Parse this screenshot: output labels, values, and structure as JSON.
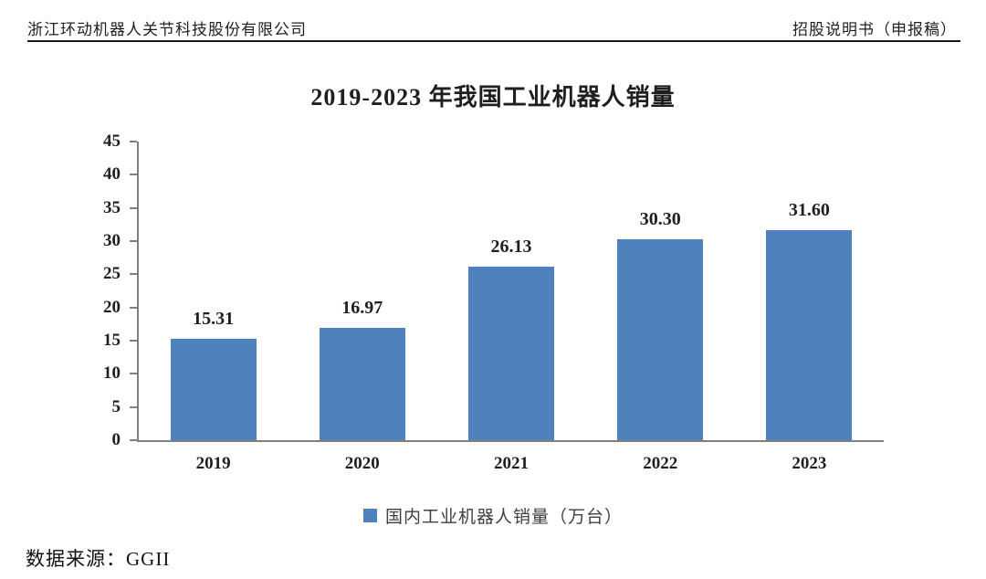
{
  "header": {
    "left": "浙江环动机器人关节科技股份有限公司",
    "right": "招股说明书（申报稿）"
  },
  "chart_data": {
    "type": "bar",
    "title": "2019-2023 年我国工业机器人销量",
    "categories": [
      "2019",
      "2020",
      "2021",
      "2022",
      "2023"
    ],
    "values": [
      15.31,
      16.97,
      26.13,
      30.3,
      31.6
    ],
    "value_labels": [
      "15.31",
      "16.97",
      "26.13",
      "30.30",
      "31.60"
    ],
    "xlabel": "",
    "ylabel": "",
    "ylim": [
      0,
      45
    ],
    "ytick_step": 5,
    "grid": false,
    "legend": "国内工业机器人销量（万台）",
    "legend_position": "bottom",
    "bar_color": "#4F81BD",
    "axis_color": "#808080"
  },
  "source": {
    "label": "数据来源：GGII"
  }
}
